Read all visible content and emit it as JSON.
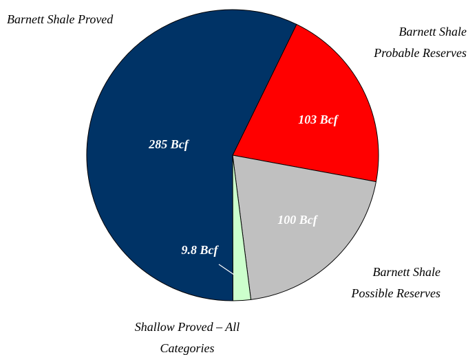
{
  "chart_data": {
    "type": "pie",
    "categories": [
      "Barnett Shale\nProbable Reserves",
      "Barnett Shale\nPossible Reserves",
      "Shallow Proved – All\nCategories",
      "Barnett Shale Proved"
    ],
    "values": [
      103,
      100,
      9.8,
      285
    ],
    "value_labels": [
      "103 Bcf",
      "100 Bcf",
      "9.8 Bcf",
      "285 Bcf"
    ],
    "colors": [
      "#ff0000",
      "#c0c0c0",
      "#ccffcc",
      "#003366"
    ]
  }
}
